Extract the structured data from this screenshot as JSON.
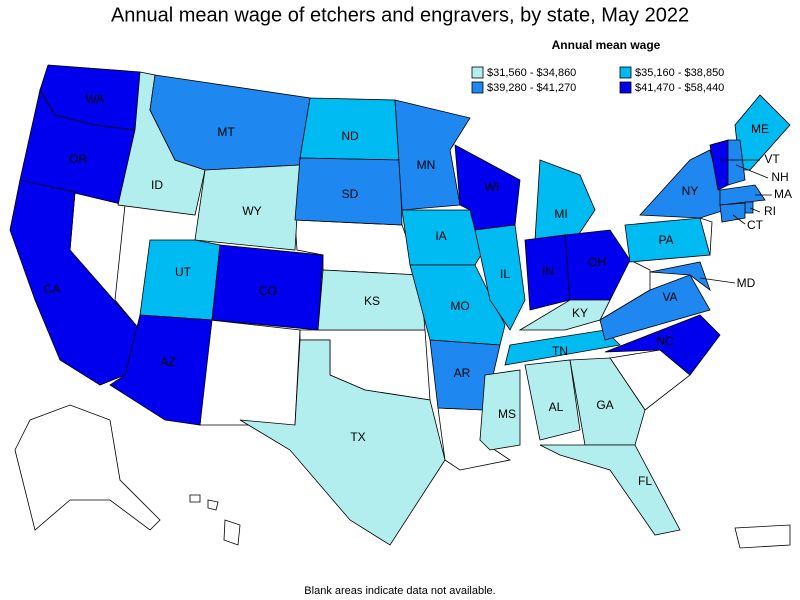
{
  "title": "Annual mean wage of etchers and engravers, by state, May 2022",
  "legend": {
    "title": "Annual mean wage",
    "classes": [
      {
        "label": "$31,560 - $34,860",
        "color": "#b3eeee"
      },
      {
        "label": "$35,160 - $38,850",
        "color": "#00bbf2"
      },
      {
        "label": "$39,280 - $41,270",
        "color": "#1e88f0"
      },
      {
        "label": "$41,470 - $58,440",
        "color": "#0000ee"
      }
    ]
  },
  "states": [
    {
      "label": "WA",
      "color": "#0000ee"
    },
    {
      "label": "OR",
      "color": "#0000ee"
    },
    {
      "label": "CA",
      "color": "#0000ee"
    },
    {
      "label": "ID",
      "color": "#b3eeee"
    },
    {
      "label": "MT",
      "color": "#1e88f0"
    },
    {
      "label": "WY",
      "color": "#b3eeee"
    },
    {
      "label": "UT",
      "color": "#00bbf2"
    },
    {
      "label": "AZ",
      "color": "#0000ee"
    },
    {
      "label": "CO",
      "color": "#0000ee"
    },
    {
      "label": "ND",
      "color": "#00bbf2"
    },
    {
      "label": "SD",
      "color": "#1e88f0"
    },
    {
      "label": "KS",
      "color": "#b3eeee"
    },
    {
      "label": "TX",
      "color": "#b3eeee"
    },
    {
      "label": "MN",
      "color": "#1e88f0"
    },
    {
      "label": "IA",
      "color": "#00bbf2"
    },
    {
      "label": "MO",
      "color": "#00bbf2"
    },
    {
      "label": "AR",
      "color": "#1e88f0"
    },
    {
      "label": "WI",
      "color": "#0000ee"
    },
    {
      "label": "IL",
      "color": "#00bbf2"
    },
    {
      "label": "MI",
      "color": "#00bbf2"
    },
    {
      "label": "IN",
      "color": "#0000ee"
    },
    {
      "label": "OH",
      "color": "#0000ee"
    },
    {
      "label": "KY",
      "color": "#b3eeee"
    },
    {
      "label": "TN",
      "color": "#00bbf2"
    },
    {
      "label": "MS",
      "color": "#b3eeee"
    },
    {
      "label": "AL",
      "color": "#b3eeee"
    },
    {
      "label": "GA",
      "color": "#b3eeee"
    },
    {
      "label": "FL",
      "color": "#b3eeee"
    },
    {
      "label": "NC",
      "color": "#0000ee"
    },
    {
      "label": "VA",
      "color": "#1e88f0"
    },
    {
      "label": "PA",
      "color": "#00bbf2"
    },
    {
      "label": "NY",
      "color": "#1e88f0"
    },
    {
      "label": "MD",
      "color": "#1e88f0"
    },
    {
      "label": "VT",
      "color": "#0000ee"
    },
    {
      "label": "ME",
      "color": "#00bbf2"
    },
    {
      "label": "NH",
      "color": "#1e88f0"
    },
    {
      "label": "MA",
      "color": "#1e88f0"
    },
    {
      "label": "RI",
      "color": "#1e88f0"
    },
    {
      "label": "CT",
      "color": "#1e88f0"
    }
  ],
  "footnote": "Blank areas indicate data not available."
}
